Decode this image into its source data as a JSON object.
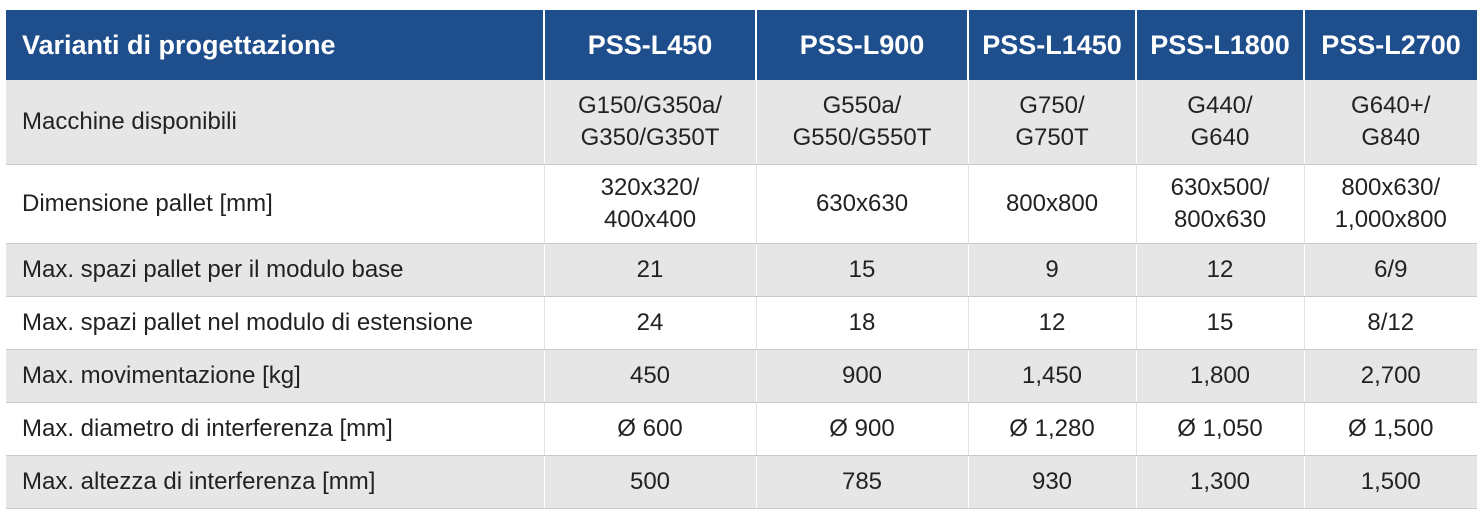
{
  "table": {
    "headers": [
      "Varianti di progettazione",
      "PSS-L450",
      "PSS-L900",
      "PSS-L1450",
      "PSS-L1800",
      "PSS-L2700"
    ],
    "rows": [
      {
        "label": "Macchine disponibili",
        "cells": [
          [
            "G150/G350a/",
            "G350/G350T"
          ],
          [
            "G550a/",
            "G550/G550T"
          ],
          [
            "G750/",
            "G750T"
          ],
          [
            "G440/",
            "G640"
          ],
          [
            "G640+/",
            "G840"
          ]
        ]
      },
      {
        "label": "Dimensione pallet [mm]",
        "cells": [
          [
            "320x320/",
            "400x400"
          ],
          [
            "630x630"
          ],
          [
            "800x800"
          ],
          [
            "630x500/",
            "800x630"
          ],
          [
            "800x630/",
            "1,000x800"
          ]
        ]
      },
      {
        "label": "Max. spazi pallet per il modulo base",
        "cells": [
          [
            "21"
          ],
          [
            "15"
          ],
          [
            "9"
          ],
          [
            "12"
          ],
          [
            "6/9"
          ]
        ]
      },
      {
        "label": "Max. spazi pallet nel modulo di estensione",
        "cells": [
          [
            "24"
          ],
          [
            "18"
          ],
          [
            "12"
          ],
          [
            "15"
          ],
          [
            "8/12"
          ]
        ]
      },
      {
        "label": "Max. movimentazione [kg]",
        "cells": [
          [
            "450"
          ],
          [
            "900"
          ],
          [
            "1,450"
          ],
          [
            "1,800"
          ],
          [
            "2,700"
          ]
        ]
      },
      {
        "label": "Max. diametro di interferenza [mm]",
        "cells": [
          [
            "Ø 600"
          ],
          [
            "Ø 900"
          ],
          [
            "Ø 1,280"
          ],
          [
            "Ø 1,050"
          ],
          [
            "Ø 1,500"
          ]
        ]
      },
      {
        "label": "Max. altezza di interferenza [mm]",
        "cells": [
          [
            "500"
          ],
          [
            "785"
          ],
          [
            "930"
          ],
          [
            "1,300"
          ],
          [
            "1,500"
          ]
        ]
      }
    ]
  },
  "colors": {
    "header_bg": "#1f4e8c",
    "header_text": "#ffffff",
    "row_shaded": "#e6e6e6",
    "row_plain": "#ffffff"
  }
}
